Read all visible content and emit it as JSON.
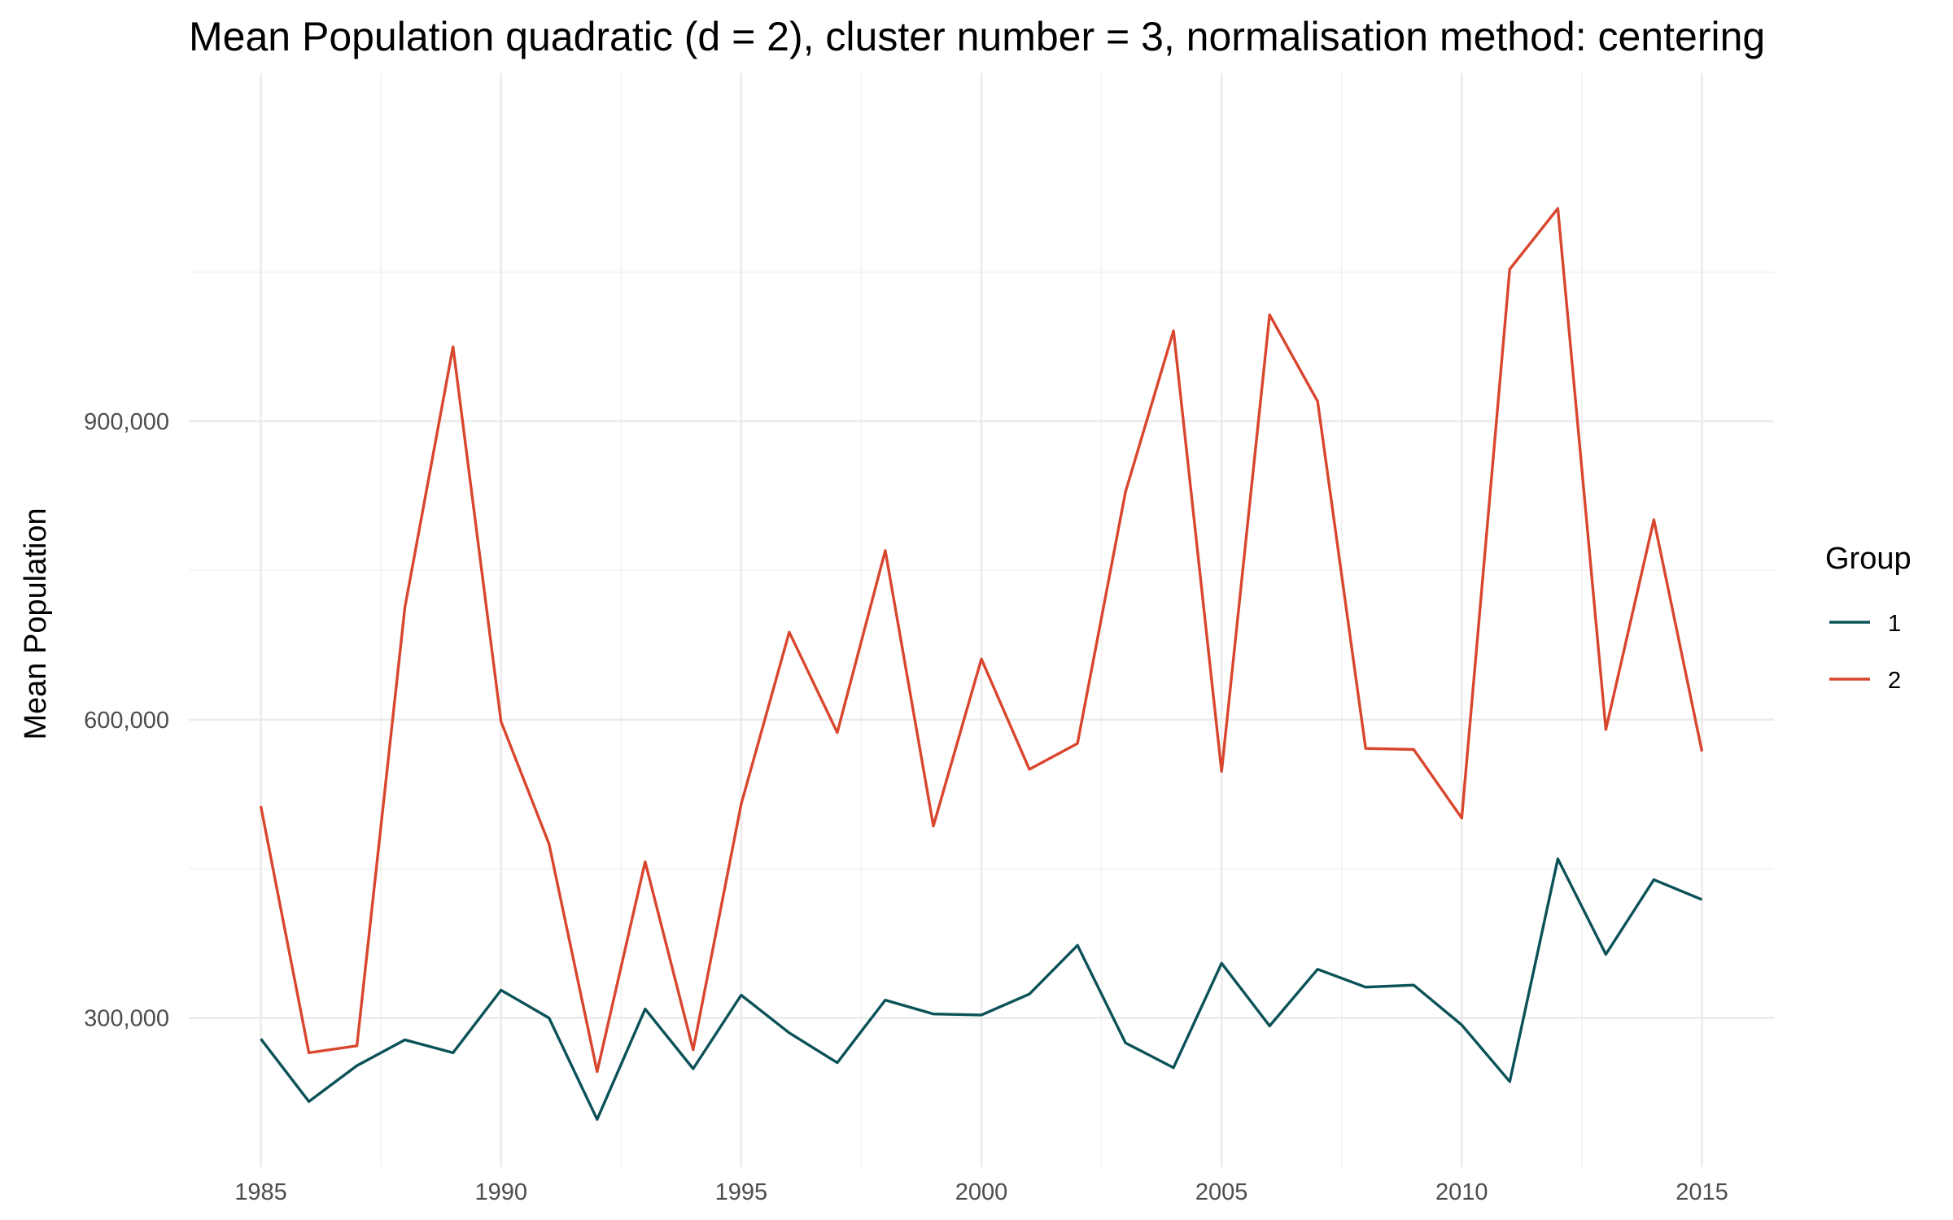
{
  "chart_data": {
    "type": "line",
    "title": "Mean Population quadratic (d = 2), cluster number = 3, normalisation method: centering",
    "xlabel": "",
    "ylabel": "Mean Population",
    "x": [
      1985,
      1986,
      1987,
      1988,
      1989,
      1990,
      1991,
      1992,
      1993,
      1994,
      1995,
      1996,
      1997,
      1998,
      1999,
      2000,
      2001,
      2002,
      2003,
      2004,
      2005,
      2006,
      2007,
      2008,
      2009,
      2010,
      2011,
      2012,
      2013,
      2014,
      2015
    ],
    "x_ticks": [
      "1985",
      "1990",
      "1995",
      "2000",
      "2005",
      "2010",
      "2015"
    ],
    "y_ticks": [
      "300,000",
      "600,000",
      "900,000"
    ],
    "y_tick_values": [
      300000,
      600000,
      900000
    ],
    "xlim": [
      1983.5,
      2016.5
    ],
    "ylim": [
      150000,
      1250000
    ],
    "grid": true,
    "legend": {
      "title": "Group",
      "position": "right"
    },
    "series": [
      {
        "name": "1",
        "color": "#0b5258",
        "values": [
          279000,
          216000,
          252000,
          278000,
          265000,
          328000,
          300000,
          198000,
          309000,
          249000,
          323000,
          285000,
          255000,
          318000,
          304000,
          303000,
          324000,
          373000,
          275000,
          250000,
          355000,
          292000,
          349000,
          331000,
          333000,
          293000,
          236000,
          460000,
          364000,
          439000,
          419000
        ]
      },
      {
        "name": "2",
        "color": "#d9462e",
        "values": [
          513000,
          265000,
          272000,
          713000,
          975000,
          598000,
          475000,
          246000,
          457000,
          268000,
          515000,
          688000,
          587000,
          770000,
          493000,
          661000,
          550000,
          576000,
          829000,
          991000,
          548000,
          1007000,
          920000,
          571000,
          570000,
          501000,
          1053000,
          1114000,
          590000,
          801000,
          568000
        ]
      }
    ]
  }
}
